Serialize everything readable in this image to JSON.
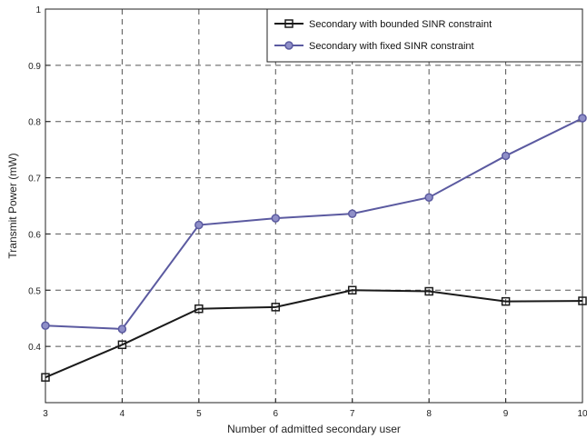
{
  "chart_data": {
    "type": "line",
    "title": "",
    "xlabel": "Number of admitted secondary user",
    "ylabel": "Transmit Power (mW)",
    "x": [
      3,
      4,
      5,
      6,
      7,
      8,
      9,
      10
    ],
    "xlim": [
      3,
      10
    ],
    "ylim": [
      0.3,
      1.0
    ],
    "xticks": [
      "3",
      "4",
      "5",
      "6",
      "7",
      "8",
      "9",
      "10"
    ],
    "yticks": [
      "0.4",
      "0.5",
      "0.6",
      "0.7",
      "0.8",
      "0.9",
      "1"
    ],
    "ytick_values": [
      0.4,
      0.5,
      0.6,
      0.7,
      0.8,
      0.9,
      1.0
    ],
    "grid": true,
    "legend_position": "top-right",
    "series": [
      {
        "name": "Secondary with bounded SINR constraint",
        "values": [
          0.345,
          0.403,
          0.467,
          0.47,
          0.5,
          0.498,
          0.48,
          0.481
        ],
        "color": "#1a1a1a",
        "marker": "square"
      },
      {
        "name": "Secondary with fixed SINR constraint",
        "values": [
          0.437,
          0.431,
          0.616,
          0.628,
          0.636,
          0.665,
          0.739,
          0.806
        ],
        "color": "#5b5aa0",
        "marker": "circle"
      }
    ]
  }
}
